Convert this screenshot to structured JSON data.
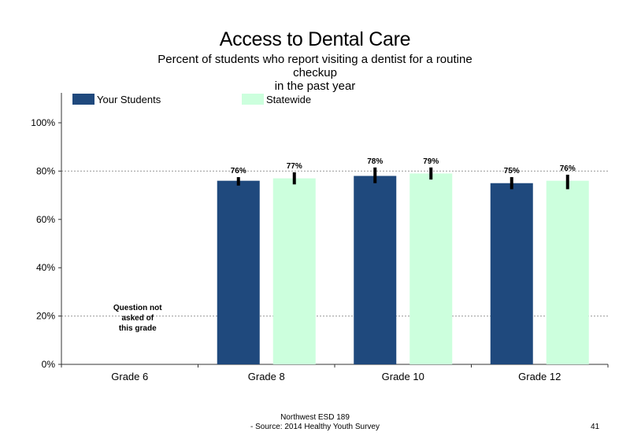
{
  "title": "Access to Dental Care",
  "subtitle_lines": [
    "Percent of students who report visiting a dentist for a routine",
    "checkup",
    "in the past year"
  ],
  "footer_lines": [
    "Northwest ESD  189",
    "- Source: 2014 Healthy  Youth Survey"
  ],
  "page_number": "41",
  "note_lines": [
    "Question not",
    "asked of",
    "this grade"
  ],
  "chart_data": {
    "type": "bar",
    "categories": [
      "Grade 6",
      "Grade 8",
      "Grade 10",
      "Grade 12"
    ],
    "series": [
      {
        "name": "Your Students",
        "color": "#1F497D",
        "values": [
          null,
          76,
          78,
          75
        ],
        "labels": [
          "",
          "76%",
          "78%",
          "75%"
        ],
        "err": [
          null,
          [
            74,
            77.5
          ],
          [
            75,
            81.5
          ],
          [
            72.5,
            77.5
          ]
        ]
      },
      {
        "name": "Statewide",
        "color": "#CCFFDD",
        "values": [
          null,
          77,
          79,
          76
        ],
        "labels": [
          "",
          "77%",
          "79%",
          "76%"
        ],
        "err": [
          null,
          [
            74.5,
            79.5
          ],
          [
            76.5,
            81.5
          ],
          [
            72.5,
            78.5
          ]
        ]
      }
    ],
    "yticks": [
      "0%",
      "20%",
      "40%",
      "60%",
      "80%",
      "100%"
    ],
    "ylim": [
      0,
      100
    ],
    "gridlines": [
      20,
      80
    ],
    "legend": "top-left"
  }
}
